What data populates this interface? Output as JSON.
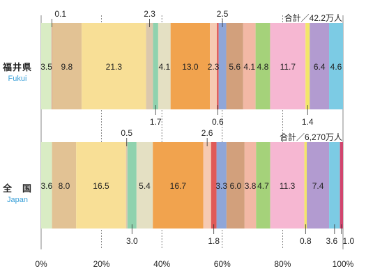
{
  "chart_data": {
    "type": "bar",
    "orientation": "horizontal",
    "stacked": true,
    "percent_axis": {
      "min": 0,
      "max": 100,
      "ticks": [
        "0%",
        "20%",
        "40%",
        "60%",
        "80%",
        "100%"
      ]
    },
    "rows": [
      {
        "label": "福井県",
        "sublabel": "Fukui",
        "total": "合計／42.2万人",
        "values": [
          3.5,
          9.8,
          21.3,
          2.3,
          1.7,
          4.1,
          13.0,
          2.3,
          0.6,
          2.5,
          5.6,
          4.1,
          4.8,
          11.7,
          1.4,
          6.4,
          4.6,
          0.1
        ],
        "display": [
          "3.5",
          "9.8",
          "21.3",
          "2.3",
          "1.7",
          "4.1",
          "13.0",
          "2.3",
          "0.6",
          "2.5",
          "5.6",
          "4.1",
          "4.8",
          "11.7",
          "1.4",
          "6.4",
          "4.6",
          "0.1"
        ]
      },
      {
        "label": "全　国",
        "sublabel": "Japan",
        "total": "合計／6,270万人",
        "values": [
          3.6,
          8.0,
          16.5,
          0.5,
          3.0,
          5.4,
          16.7,
          2.6,
          1.8,
          3.3,
          6.0,
          3.8,
          4.7,
          11.3,
          0.8,
          7.4,
          3.6,
          1.0
        ],
        "display": [
          "3.6",
          "8.0",
          "16.5",
          "0.5",
          "3.0",
          "5.4",
          "16.7",
          "2.6",
          "1.8",
          "3.3",
          "6.0",
          "3.8",
          "4.7",
          "11.3",
          "0.8",
          "7.4",
          "3.6",
          "1.0"
        ]
      }
    ],
    "segment_colors": [
      "#d9ecc4",
      "#e2c294",
      "#f8df96",
      "#dcc8ad",
      "#8fd2ae",
      "#e4e0c3",
      "#f1a34e",
      "#f6cab2",
      "#e05a58",
      "#8fa6d8",
      "#d2a07c",
      "#f2b8a5",
      "#a5d27a",
      "#f6b7d2",
      "#f3e66a",
      "#b29bd0",
      "#7ccbe4",
      "#d2456e"
    ]
  }
}
